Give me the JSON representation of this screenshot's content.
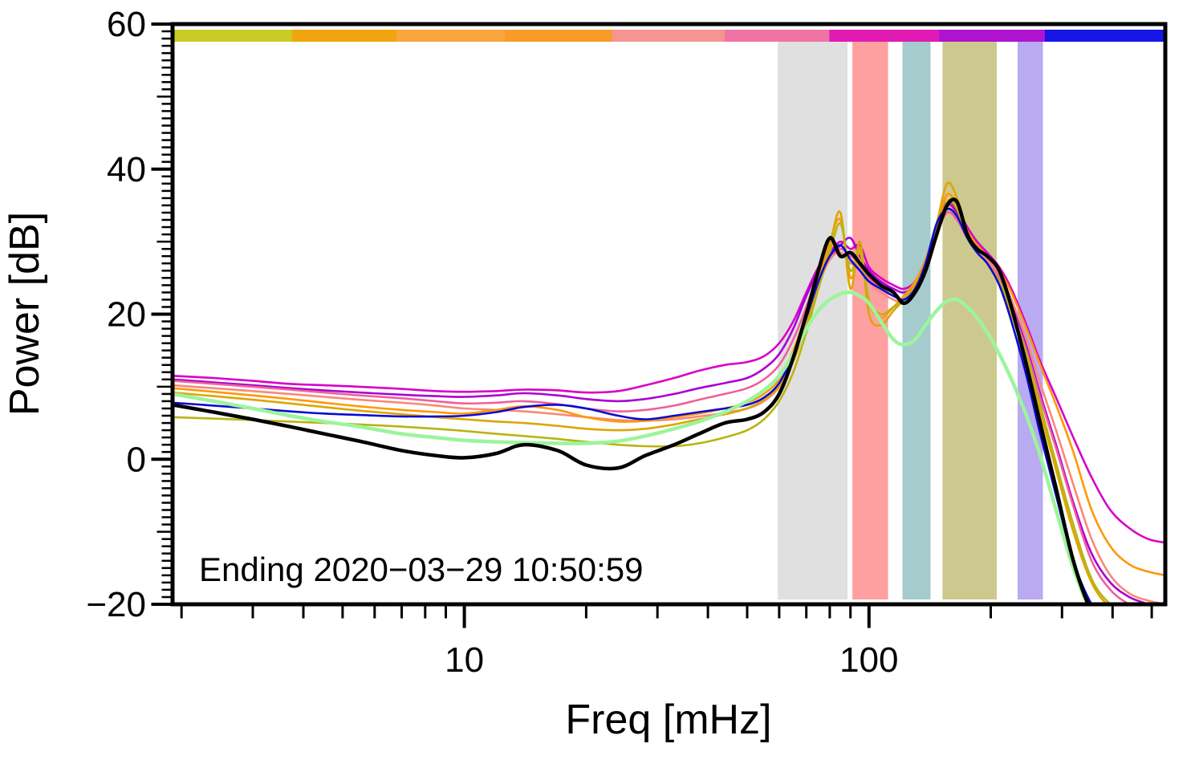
{
  "chart_data": {
    "type": "line",
    "title": "",
    "xlabel": "Freq [mHz]",
    "ylabel": "Power [dB]",
    "x_scale": "log",
    "xlim": [
      1.9,
      540
    ],
    "ylim": [
      -20,
      60
    ],
    "grid": false,
    "legend": "none",
    "annotation": "Ending 2020−03−29 10:50:59",
    "xticks_major": [
      {
        "v": 10,
        "label": "10"
      },
      {
        "v": 100,
        "label": "100"
      }
    ],
    "yticks_major": [
      {
        "v": -20,
        "label": "−20"
      },
      {
        "v": 0,
        "label": "0"
      },
      {
        "v": 20,
        "label": "20"
      },
      {
        "v": 40,
        "label": "40"
      },
      {
        "v": 60,
        "label": "60"
      }
    ],
    "time_colorbar_segments": [
      {
        "f0": 1.9,
        "f1": 3.75,
        "color": "#c9cc24"
      },
      {
        "f0": 3.75,
        "f1": 6.8,
        "color": "#f2a40e"
      },
      {
        "f0": 6.8,
        "f1": 12.6,
        "color": "#f9a63c"
      },
      {
        "f0": 12.6,
        "f1": 23.2,
        "color": "#f99b28"
      },
      {
        "f0": 23.2,
        "f1": 44,
        "color": "#f69492"
      },
      {
        "f0": 44,
        "f1": 79.8,
        "color": "#ef74a4"
      },
      {
        "f0": 79.8,
        "f1": 149,
        "color": "#e11ab4"
      },
      {
        "f0": 149,
        "f1": 272,
        "color": "#ae13cf"
      },
      {
        "f0": 272,
        "f1": 540,
        "color": "#1616e8"
      }
    ],
    "shaded_bands": [
      {
        "name": "gray",
        "f0": 59.5,
        "f1": 88.5,
        "color": "#e0e0e0"
      },
      {
        "name": "red",
        "f0": 91,
        "f1": 111.5,
        "color": "#ffa0a0"
      },
      {
        "name": "teal",
        "f0": 121,
        "f1": 142,
        "color": "#a5cbcd"
      },
      {
        "name": "olive",
        "f0": 152,
        "f1": 207,
        "color": "#cdc98e"
      },
      {
        "name": "lavender",
        "f0": 233,
        "f1": 269,
        "color": "#b9aaf2"
      }
    ],
    "x_mHz": [
      1.9,
      2.4,
      3,
      3.7,
      4.5,
      5.5,
      7,
      8.5,
      10,
      12,
      14,
      17,
      20,
      24,
      28,
      33,
      38,
      44,
      50,
      55,
      60,
      65,
      70,
      75,
      80,
      85,
      90,
      95,
      100,
      107,
      115,
      122,
      130,
      138,
      147,
      156,
      165,
      175,
      185,
      196,
      210,
      225,
      245,
      265,
      290,
      320,
      355,
      395,
      440,
      490,
      540
    ],
    "series": [
      {
        "name": "magenta",
        "color": "#d800c8",
        "width": 2.6,
        "power_dB": [
          11.5,
          11.2,
          10.8,
          10.4,
          10.2,
          10.0,
          9.7,
          9.4,
          9.3,
          9.4,
          9.6,
          9.5,
          9.2,
          9.4,
          10.2,
          11.2,
          12.2,
          13.0,
          13.4,
          14.2,
          16,
          19,
          23,
          26.5,
          28.5,
          30,
          29,
          29.5,
          26.5,
          25,
          24,
          23.5,
          24.5,
          27.5,
          32,
          35.5,
          34.5,
          32,
          30,
          28.5,
          26.5,
          23.5,
          18.5,
          13.5,
          8.5,
          3,
          -2.5,
          -7,
          -9.5,
          -11,
          -11.5
        ]
      },
      {
        "name": "purple",
        "color": "#aa00d4",
        "width": 2.6,
        "power_dB": [
          11.0,
          10.6,
          10.2,
          9.8,
          9.5,
          9.2,
          8.9,
          8.7,
          8.6,
          8.8,
          9.1,
          8.8,
          8.3,
          8.0,
          8.3,
          9.0,
          9.8,
          10.5,
          11.2,
          12.5,
          14.5,
          18,
          22.5,
          26,
          28,
          29.5,
          30.5,
          28,
          26,
          24.5,
          23.5,
          23,
          24,
          27,
          31.5,
          35,
          34,
          31,
          29.5,
          28,
          25.5,
          21.5,
          15.5,
          9,
          2,
          -6,
          -13,
          -17,
          -19,
          -20,
          -21
        ]
      },
      {
        "name": "rose",
        "color": "#f0609c",
        "width": 2.6,
        "power_dB": [
          10.8,
          10.4,
          10.0,
          9.6,
          9.2,
          8.8,
          8.4,
          8.0,
          7.7,
          7.8,
          8.0,
          7.6,
          7.0,
          6.6,
          6.8,
          7.4,
          8.2,
          9.0,
          9.8,
          11,
          13,
          16.5,
          21,
          25.5,
          27.5,
          29,
          28,
          27,
          25,
          23.5,
          22.5,
          22,
          23.5,
          26.5,
          31,
          34,
          33,
          30.5,
          29,
          27.5,
          25,
          21,
          15,
          8.5,
          1.5,
          -6.5,
          -14,
          -18,
          -20,
          -21,
          -21.5
        ]
      },
      {
        "name": "salmon",
        "color": "#fa8878",
        "width": 2.6,
        "power_dB": [
          10.2,
          9.8,
          9.4,
          9.0,
          8.6,
          8.2,
          7.8,
          7.4,
          7.0,
          6.8,
          6.6,
          6.2,
          5.8,
          5.4,
          5.3,
          5.5,
          5.9,
          6.4,
          7.0,
          8.0,
          10,
          14,
          19,
          24,
          27.5,
          28.5,
          27,
          26.5,
          24.5,
          23,
          22,
          21.5,
          23,
          26.5,
          31,
          34.5,
          33.5,
          30.5,
          29,
          27.5,
          25.5,
          22,
          16.5,
          10.5,
          4,
          -3.5,
          -11,
          -16,
          -18.5,
          -19.5,
          -20
        ]
      },
      {
        "name": "orange",
        "color": "#ff9808",
        "width": 2.6,
        "power_dB": [
          9.8,
          9.3,
          8.8,
          8.3,
          7.8,
          7.3,
          6.8,
          6.5,
          6.3,
          6.8,
          7.3,
          6.8,
          5.8,
          5.2,
          5.3,
          5.8,
          6.3,
          7.0,
          7.8,
          9.0,
          11,
          15,
          20,
          25,
          30,
          33,
          25,
          28.5,
          21.5,
          19.5,
          21,
          22.5,
          24.5,
          27.5,
          32,
          36.5,
          35,
          31.5,
          29.5,
          28,
          26,
          23,
          18,
          13,
          7.5,
          1,
          -7,
          -12,
          -14.5,
          -15.5,
          -16
        ]
      },
      {
        "name": "goldenrod",
        "color": "#dda504",
        "width": 2.6,
        "power_dB": [
          9.2,
          8.7,
          8.2,
          7.7,
          7.2,
          6.7,
          6.2,
          5.8,
          5.5,
          5.2,
          5.0,
          4.6,
          4.2,
          4.0,
          4.2,
          4.8,
          5.5,
          6.2,
          7.0,
          8.2,
          10,
          13.5,
          18.5,
          24,
          29.5,
          34,
          23.5,
          30,
          20,
          18.5,
          20.5,
          22,
          24,
          27,
          32.5,
          38,
          36,
          31,
          28.5,
          27,
          24.5,
          20,
          13.5,
          6.5,
          -1.5,
          -10,
          -17,
          -20.5,
          -22,
          -23,
          -23.5
        ]
      },
      {
        "name": "olive",
        "color": "#b8b414",
        "width": 2.6,
        "power_dB": [
          5.8,
          5.6,
          5.4,
          5.2,
          5.0,
          4.8,
          4.5,
          4.2,
          3.9,
          3.5,
          3.2,
          2.8,
          2.4,
          2.0,
          1.8,
          1.8,
          2.2,
          3.0,
          4.0,
          5.5,
          8,
          12,
          17.5,
          23.5,
          28.5,
          32.5,
          26,
          29,
          22,
          20,
          21,
          22,
          23.5,
          26,
          30.5,
          35.5,
          34.5,
          30.5,
          28.5,
          27,
          24.5,
          20.5,
          14.5,
          7.5,
          -0.5,
          -9,
          -16.5,
          -20,
          -21.5,
          -22.5,
          -23
        ]
      },
      {
        "name": "blue",
        "color": "#0a0ad2",
        "width": 2.6,
        "power_dB": [
          7.8,
          7.4,
          7.0,
          6.6,
          6.3,
          6.1,
          5.9,
          5.9,
          6.0,
          6.5,
          7.2,
          7.5,
          7.0,
          6.0,
          5.5,
          6.0,
          6.5,
          7.0,
          7.5,
          8.5,
          10.5,
          14.5,
          19.5,
          24.5,
          28,
          29.5,
          27.5,
          26,
          24.5,
          23.5,
          22.5,
          22,
          23.5,
          27,
          32.5,
          34.5,
          33.5,
          30.5,
          28.5,
          27,
          24,
          19,
          11.5,
          3.5,
          -5,
          -14,
          -20,
          -23,
          -24,
          -24.5,
          -25
        ]
      },
      {
        "name": "palegreen",
        "color": "#9bf59b",
        "width": 4.5,
        "power_dB": [
          9.0,
          8.0,
          7.0,
          6.0,
          5.2,
          4.5,
          3.5,
          3.0,
          2.6,
          2.4,
          2.3,
          2.2,
          2.2,
          2.5,
          3.2,
          4.2,
          5.2,
          6.5,
          8.0,
          9.5,
          11.5,
          14.5,
          18,
          20.5,
          22,
          22.8,
          23,
          22.5,
          21.5,
          19,
          16.5,
          15.8,
          16.5,
          18.5,
          20.5,
          21.8,
          22,
          21,
          19.5,
          17.5,
          14.5,
          11,
          6,
          0.5,
          -7,
          -15,
          -21,
          -23,
          -24,
          -24.5,
          -25
        ]
      },
      {
        "name": "black",
        "color": "#000000",
        "width": 4.5,
        "power_dB": [
          7.5,
          6.5,
          5.5,
          4.5,
          3.5,
          2.5,
          1.2,
          0.5,
          0.2,
          0.8,
          2.0,
          1.2,
          -0.8,
          -1.2,
          0.5,
          2.0,
          3.5,
          5.0,
          5.5,
          6.5,
          9.0,
          14,
          20,
          26,
          30.5,
          28,
          28.5,
          27,
          25.5,
          24,
          23,
          21.5,
          23,
          26,
          31,
          35,
          35.5,
          31,
          29,
          28,
          26,
          21,
          13,
          5,
          -4,
          -14,
          -21,
          -24,
          -25,
          -25,
          -25
        ]
      }
    ]
  }
}
